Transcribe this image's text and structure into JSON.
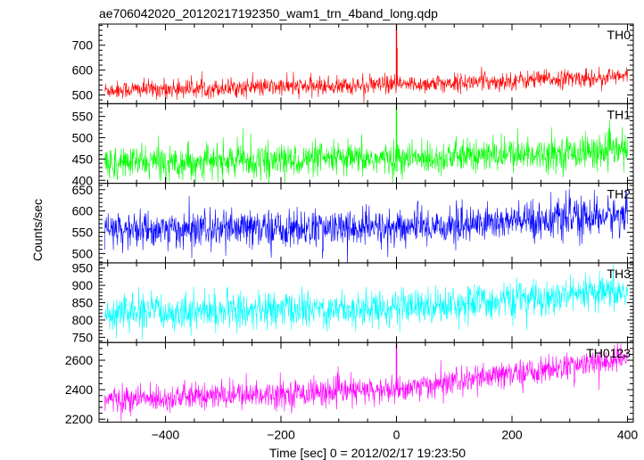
{
  "chart_data": {
    "type": "line",
    "title": "ae706042020_20120217192350_wam1_trn_4band_long.qdp",
    "xlabel": "Time [sec] 0 = 2012/02/17 19:23:50",
    "ylabel": "Counts/sec",
    "xlim": [
      -515,
      410
    ],
    "x_ticks": [
      -400,
      -200,
      0,
      200,
      400
    ],
    "x_tick_labels": [
      "−400",
      "−200",
      "0",
      "200",
      "400"
    ],
    "x_range_data": [
      -505,
      400
    ],
    "grid": false,
    "legend": "none",
    "panels": [
      {
        "label": "TH0",
        "color": "#ff0000",
        "ylim": [
          465,
          785
        ],
        "yticks": [
          500,
          600,
          700
        ],
        "trend": [
          {
            "x": -505,
            "y": 520
          },
          {
            "x": 0,
            "y": 540
          },
          {
            "x": 400,
            "y": 575
          }
        ],
        "noise_sd": 18,
        "spikes": [
          {
            "x": 0,
            "y": 785
          },
          {
            "x": 0.8,
            "y": 690
          }
        ]
      },
      {
        "label": "TH1",
        "color": "#00ff00",
        "ylim": [
          393,
          580
        ],
        "yticks": [
          400,
          450,
          500,
          550
        ],
        "trend": [
          {
            "x": -505,
            "y": 442
          },
          {
            "x": 0,
            "y": 450
          },
          {
            "x": 400,
            "y": 470
          }
        ],
        "noise_sd": 19,
        "spikes": [
          {
            "x": 0,
            "y": 580
          }
        ]
      },
      {
        "label": "TH2",
        "color": "#0000ff",
        "ylim": [
          478,
          665
        ],
        "yticks": [
          500,
          550,
          600,
          650
        ],
        "trend": [
          {
            "x": -505,
            "y": 555
          },
          {
            "x": 0,
            "y": 560
          },
          {
            "x": 400,
            "y": 590
          }
        ],
        "noise_sd": 22,
        "spikes": []
      },
      {
        "label": "TH3",
        "color": "#00ffff",
        "ylim": [
          735,
          965
        ],
        "yticks": [
          750,
          800,
          850,
          900,
          950
        ],
        "trend": [
          {
            "x": -505,
            "y": 820
          },
          {
            "x": 0,
            "y": 835
          },
          {
            "x": 400,
            "y": 880
          }
        ],
        "noise_sd": 26,
        "spikes": []
      },
      {
        "label": "TH0123",
        "color": "#ff00ff",
        "ylim": [
          2180,
          2720
        ],
        "yticks": [
          2200,
          2400,
          2600
        ],
        "trend": [
          {
            "x": -505,
            "y": 2330
          },
          {
            "x": 0,
            "y": 2400
          },
          {
            "x": 400,
            "y": 2610
          }
        ],
        "noise_sd": 45,
        "spikes": [
          {
            "x": 0,
            "y": 2720
          }
        ]
      }
    ]
  }
}
